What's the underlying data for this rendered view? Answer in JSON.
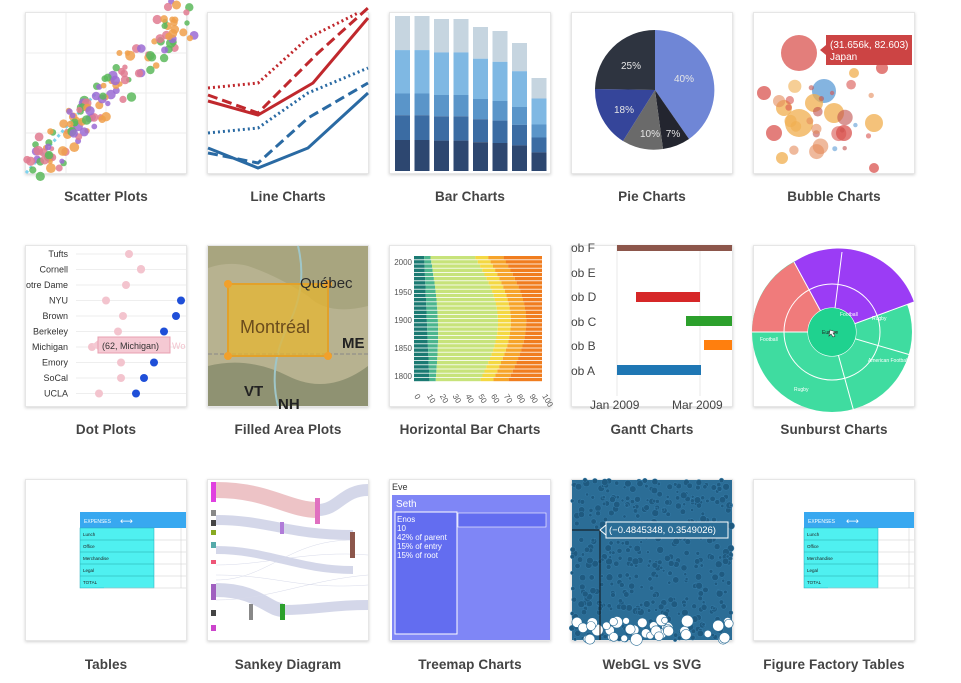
{
  "gallery": {
    "items": [
      {
        "label": "Scatter Plots"
      },
      {
        "label": "Line Charts"
      },
      {
        "label": "Bar Charts"
      },
      {
        "label": "Pie Charts"
      },
      {
        "label": "Bubble Charts"
      },
      {
        "label": "Dot Plots"
      },
      {
        "label": "Filled Area Plots"
      },
      {
        "label": "Horizontal Bar Charts"
      },
      {
        "label": "Gantt Charts"
      },
      {
        "label": "Sunburst Charts"
      },
      {
        "label": "Tables"
      },
      {
        "label": "Sankey Diagram"
      },
      {
        "label": "Treemap Charts"
      },
      {
        "label": "WebGL vs SVG"
      },
      {
        "label": "Figure Factory Tables"
      }
    ]
  },
  "thumbs": {
    "pie": {
      "slices": [
        "40%",
        "7%",
        "10%",
        "18%",
        "25%"
      ]
    },
    "bubble": {
      "tooltip_value": "(31.656k, 82.603)",
      "tooltip_name": "Japan"
    },
    "dot": {
      "categories": [
        "Tufts",
        "Cornell",
        "otre Dame",
        "NYU",
        "Brown",
        "Berkeley",
        "Michigan",
        "Emory",
        "SoCal",
        "UCLA"
      ],
      "tooltip": "(62, Michigan)",
      "clipped_legend": "Wo"
    },
    "map": {
      "city_quebec": "Québec",
      "city_montreal": "Montréal",
      "state_me": "ME",
      "state_vt": "VT",
      "state_nh": "NH"
    },
    "hbar": {
      "y_ticks": [
        "2000",
        "1950",
        "1900",
        "1850",
        "1800"
      ],
      "x_ticks": [
        "0",
        "10",
        "20",
        "30",
        "40",
        "50",
        "60",
        "70",
        "80",
        "90",
        "100"
      ]
    },
    "gantt": {
      "tasks": [
        "ob F",
        "ob E",
        "ob D",
        "ob C",
        "ob B",
        "ob A"
      ],
      "x_ticks": [
        "Jan 2009",
        "Mar 2009"
      ]
    },
    "sunburst": {
      "labels": [
        "Europe",
        "Football",
        "American Football",
        "Rugby",
        "Football",
        "Rugby"
      ]
    },
    "table": {
      "header": "EXPENSES",
      "rows": [
        "Lunch",
        "Office",
        "Merchandise",
        "Legal",
        "TOTAL"
      ]
    },
    "treemap": {
      "root": "Eve",
      "node": "Seth",
      "info": [
        "Enos",
        "10",
        "42% of parent",
        "15% of entry",
        "15% of root"
      ]
    },
    "webgl": {
      "tooltip": "(−0.4845348, 0.3549026)"
    }
  }
}
